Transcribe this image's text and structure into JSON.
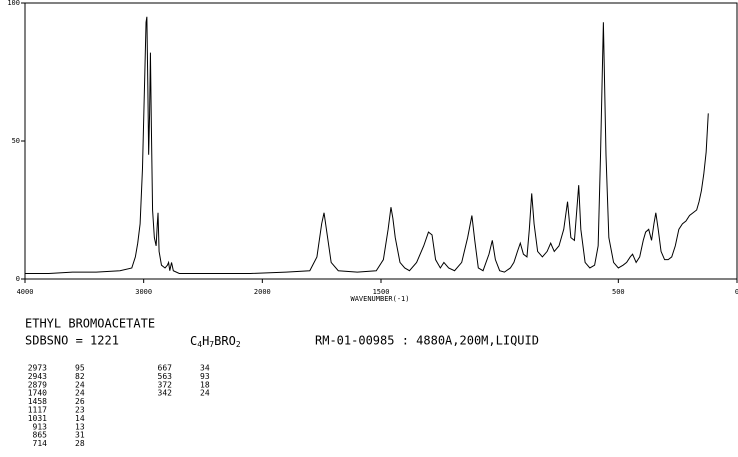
{
  "chart_data": {
    "type": "line",
    "x_label": "WAVENUMBER(-1)",
    "color": "#000000",
    "xlim": [
      4000,
      0
    ],
    "x_break": 2000,
    "xticks": [
      4000,
      3000,
      2000,
      1500,
      500,
      0
    ],
    "ylim": [
      0,
      100
    ],
    "yticks": [
      0,
      50,
      100
    ],
    "x": [
      4000,
      3800,
      3600,
      3400,
      3200,
      3100,
      3070,
      3050,
      3030,
      3010,
      2990,
      2980,
      2973,
      2965,
      2958,
      2950,
      2943,
      2935,
      2925,
      2910,
      2895,
      2885,
      2879,
      2870,
      2850,
      2820,
      2800,
      2790,
      2780,
      2765,
      2750,
      2700,
      2500,
      2300,
      2100,
      1900,
      1800,
      1770,
      1750,
      1740,
      1730,
      1710,
      1680,
      1600,
      1520,
      1490,
      1470,
      1458,
      1450,
      1440,
      1420,
      1400,
      1380,
      1350,
      1320,
      1300,
      1285,
      1270,
      1250,
      1235,
      1215,
      1190,
      1160,
      1135,
      1117,
      1105,
      1090,
      1070,
      1045,
      1031,
      1018,
      1000,
      980,
      955,
      940,
      925,
      913,
      900,
      885,
      875,
      865,
      855,
      840,
      820,
      800,
      785,
      770,
      750,
      730,
      714,
      700,
      685,
      675,
      667,
      658,
      640,
      620,
      600,
      585,
      575,
      563,
      552,
      540,
      520,
      500,
      480,
      465,
      450,
      440,
      425,
      410,
      395,
      385,
      372,
      360,
      350,
      342,
      332,
      320,
      305,
      290,
      275,
      260,
      245,
      230,
      215,
      200,
      185,
      170,
      160,
      150,
      140,
      130,
      121
    ],
    "values": [
      2,
      2,
      2.5,
      2.5,
      3,
      4,
      8,
      13,
      20,
      40,
      75,
      93,
      95,
      70,
      45,
      60,
      82,
      55,
      25,
      15,
      12,
      20,
      24,
      10,
      5,
      4,
      5,
      6,
      3,
      6,
      3,
      2,
      2,
      2,
      2,
      2.5,
      3,
      8,
      20,
      24,
      18,
      6,
      3,
      2.5,
      3,
      7,
      18,
      26,
      22,
      15,
      6,
      4,
      3,
      6,
      12,
      17,
      16,
      7,
      4,
      6,
      4,
      3,
      6,
      15,
      23,
      14,
      4,
      3,
      9,
      14,
      7,
      3,
      2.5,
      4,
      6,
      10,
      13,
      9,
      8,
      18,
      31,
      20,
      10,
      8,
      10,
      13,
      10,
      12,
      18,
      28,
      15,
      14,
      25,
      34,
      18,
      6,
      4,
      5,
      12,
      45,
      93,
      45,
      15,
      6,
      4,
      5,
      6,
      8,
      9,
      6,
      8,
      14,
      17,
      18,
      14,
      20,
      24,
      18,
      10,
      7,
      7,
      8,
      12,
      18,
      20,
      21,
      23,
      24,
      25,
      28,
      32,
      38,
      46,
      60
    ]
  },
  "info": {
    "compound": "ETHYL BROMOACETATE",
    "sdbs_no": "SDBSNO = 1221",
    "formula": "C4H7BRO2",
    "method": "RM-01-00985 : 4880A,200M,LIQUID",
    "peaks": [
      [
        2973,
        95
      ],
      [
        2943,
        82
      ],
      [
        2879,
        24
      ],
      [
        1740,
        24
      ],
      [
        1458,
        26
      ],
      [
        1117,
        23
      ],
      [
        1031,
        14
      ],
      [
        913,
        13
      ],
      [
        865,
        31
      ],
      [
        714,
        28
      ],
      [
        667,
        34
      ],
      [
        563,
        93
      ],
      [
        372,
        18
      ],
      [
        342,
        24
      ]
    ]
  }
}
